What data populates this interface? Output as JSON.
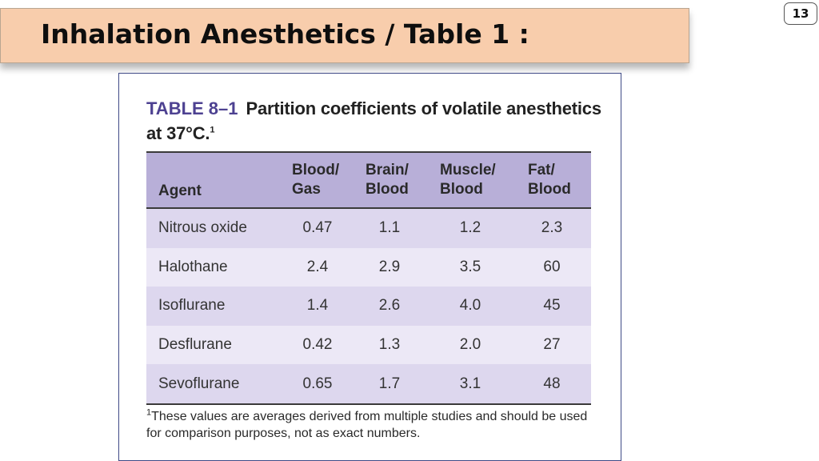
{
  "header": {
    "title": "Inhalation Anesthetics / Table 1 :",
    "page_number": "13"
  },
  "table": {
    "label": "TABLE 8–1",
    "title": "Partition coefficients of volatile anesthetics at 37°C.",
    "title_footnote_mark": "1",
    "columns": [
      {
        "line1": "",
        "line2": "Agent"
      },
      {
        "line1": "Blood/",
        "line2": "Gas"
      },
      {
        "line1": "Brain/",
        "line2": "Blood"
      },
      {
        "line1": "Muscle/",
        "line2": "Blood"
      },
      {
        "line1": "Fat/",
        "line2": "Blood"
      }
    ],
    "rows": [
      [
        "Nitrous oxide",
        "0.47",
        "1.1",
        "1.2",
        "2.3"
      ],
      [
        "Halothane",
        "2.4",
        "2.9",
        "3.5",
        "60"
      ],
      [
        "Isoflurane",
        "1.4",
        "2.6",
        "4.0",
        "45"
      ],
      [
        "Desflurane",
        "0.42",
        "1.3",
        "2.0",
        "27"
      ],
      [
        "Sevoflurane",
        "0.65",
        "1.7",
        "3.1",
        "48"
      ]
    ],
    "footnote_mark": "1",
    "footnote": "These values are averages derived from multiple studies and should be used for comparison purposes, not as exact numbers."
  },
  "colors": {
    "header_band": "#f8cdac",
    "table_head": "#b8afd8",
    "row_dark": "#ddd7ee",
    "row_light": "#ece8f6",
    "label_purple": "#4d4191"
  }
}
